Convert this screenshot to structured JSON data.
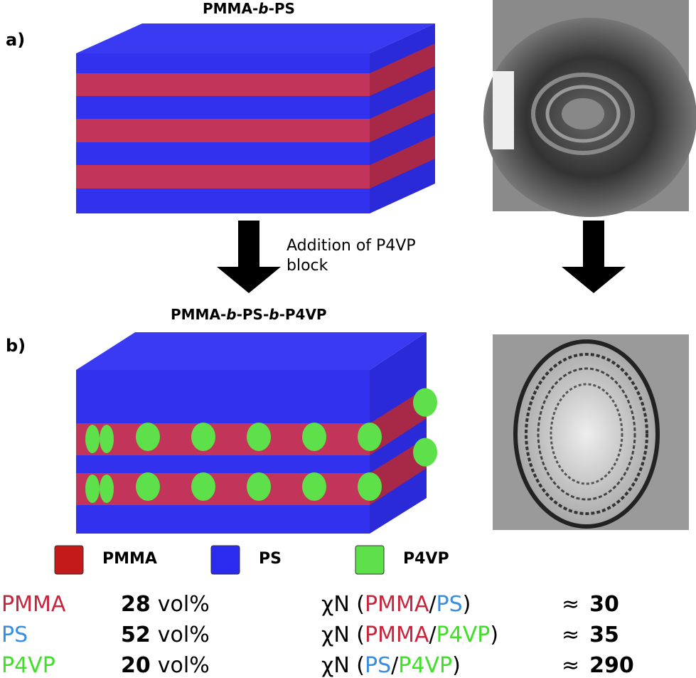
{
  "panel_a": {
    "label": "a)",
    "title": [
      "PMMA-",
      "b",
      "-PS"
    ]
  },
  "transition": {
    "lines": [
      "Addition of P4VP",
      "block"
    ]
  },
  "panel_b": {
    "label": "b)",
    "title": [
      "PMMA-",
      "b",
      "-PS-",
      "b",
      "-P4VP"
    ]
  },
  "legend": [
    {
      "label": "PMMA",
      "color": "#c41a1a"
    },
    {
      "label": "PS",
      "color": "#2b2bf0"
    },
    {
      "label": "P4VP",
      "color": "#5ee04a"
    }
  ],
  "composition": [
    {
      "name": "PMMA",
      "color": "#c8243a",
      "value": 28,
      "unit": "vol%"
    },
    {
      "name": "PS",
      "color": "#3a8ee0",
      "value": 52,
      "unit": "vol%"
    },
    {
      "name": "P4VP",
      "color": "#3fe028",
      "value": 20,
      "unit": "vol%"
    }
  ],
  "interactions": [
    {
      "prefix": "χN (",
      "a": "PMMA",
      "a_color": "#c8243a",
      "sep": "/",
      "b": "PS",
      "b_color": "#3a8ee0",
      "suffix": ")",
      "approx": "≈",
      "value": 30
    },
    {
      "prefix": "χN (",
      "a": "PMMA",
      "a_color": "#c8243a",
      "sep": "/",
      "b": "P4VP",
      "b_color": "#3fe028",
      "suffix": ")",
      "approx": "≈",
      "value": 35
    },
    {
      "prefix": "χN (",
      "a": "PS",
      "a_color": "#3a8ee0",
      "sep": "/",
      "b": "P4VP",
      "b_color": "#3fe028",
      "suffix": ")",
      "approx": "≈",
      "value": 290
    }
  ]
}
